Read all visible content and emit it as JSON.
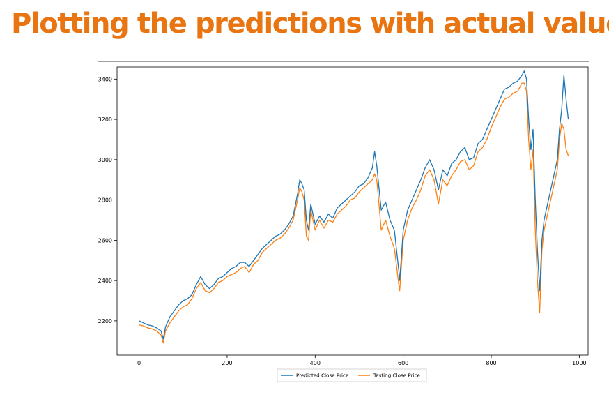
{
  "slide": {
    "title": "Plotting the predictions with actual values"
  },
  "colors": {
    "title": "#e87511",
    "predicted": "#1f77b4",
    "testing": "#ff7f0e"
  },
  "chart_data": {
    "type": "line",
    "title": "",
    "xlabel": "",
    "ylabel": "",
    "xlim": [
      -50,
      1020
    ],
    "ylim": [
      2030,
      3460
    ],
    "xticks": [
      0,
      200,
      400,
      600,
      800,
      1000
    ],
    "yticks": [
      2200,
      2400,
      2600,
      2800,
      3000,
      3200,
      3400
    ],
    "grid": false,
    "legend": {
      "placement": "bottom-center",
      "entries": [
        "Predicted Close Price",
        "Testing Close Price"
      ]
    },
    "x": [
      0,
      10,
      20,
      30,
      40,
      50,
      55,
      60,
      70,
      80,
      90,
      100,
      110,
      120,
      130,
      140,
      150,
      160,
      170,
      180,
      190,
      200,
      210,
      220,
      230,
      240,
      250,
      260,
      270,
      280,
      290,
      300,
      310,
      320,
      330,
      340,
      350,
      360,
      365,
      370,
      375,
      380,
      385,
      390,
      400,
      410,
      420,
      430,
      440,
      450,
      460,
      470,
      480,
      490,
      500,
      510,
      520,
      530,
      535,
      540,
      545,
      550,
      560,
      570,
      580,
      590,
      592,
      600,
      610,
      620,
      630,
      640,
      650,
      660,
      670,
      680,
      690,
      700,
      710,
      720,
      730,
      740,
      750,
      760,
      770,
      780,
      790,
      800,
      810,
      820,
      830,
      840,
      850,
      860,
      870,
      875,
      880,
      885,
      890,
      895,
      900,
      905,
      910,
      915,
      920,
      930,
      940,
      950,
      955,
      960,
      965,
      970,
      975
    ],
    "series": [
      {
        "name": "Predicted Close Price",
        "values": [
          2200,
          2190,
          2180,
          2175,
          2165,
          2150,
          2110,
          2170,
          2220,
          2250,
          2280,
          2300,
          2310,
          2330,
          2380,
          2420,
          2380,
          2360,
          2380,
          2410,
          2420,
          2440,
          2460,
          2470,
          2490,
          2490,
          2470,
          2500,
          2530,
          2560,
          2580,
          2600,
          2620,
          2630,
          2650,
          2680,
          2720,
          2830,
          2900,
          2880,
          2850,
          2700,
          2650,
          2780,
          2680,
          2720,
          2690,
          2730,
          2710,
          2760,
          2780,
          2800,
          2820,
          2840,
          2870,
          2880,
          2910,
          2960,
          3040,
          2970,
          2860,
          2750,
          2790,
          2700,
          2650,
          2450,
          2400,
          2650,
          2750,
          2800,
          2850,
          2900,
          2960,
          3000,
          2950,
          2850,
          2950,
          2920,
          2980,
          3000,
          3040,
          3060,
          3000,
          3010,
          3080,
          3100,
          3150,
          3200,
          3250,
          3300,
          3350,
          3360,
          3380,
          3390,
          3420,
          3440,
          3400,
          3200,
          3050,
          3150,
          2800,
          2550,
          2350,
          2600,
          2700,
          2800,
          2900,
          3000,
          3150,
          3250,
          3420,
          3300,
          3200
        ]
      },
      {
        "name": "Testing Close Price",
        "values": [
          2180,
          2175,
          2165,
          2160,
          2150,
          2130,
          2090,
          2150,
          2190,
          2220,
          2250,
          2270,
          2280,
          2310,
          2360,
          2390,
          2350,
          2340,
          2360,
          2390,
          2400,
          2420,
          2430,
          2440,
          2460,
          2470,
          2440,
          2480,
          2500,
          2540,
          2560,
          2580,
          2600,
          2610,
          2630,
          2660,
          2700,
          2800,
          2860,
          2840,
          2800,
          2620,
          2600,
          2750,
          2650,
          2700,
          2660,
          2700,
          2690,
          2730,
          2750,
          2770,
          2800,
          2810,
          2840,
          2860,
          2880,
          2900,
          2930,
          2900,
          2780,
          2650,
          2700,
          2620,
          2560,
          2380,
          2350,
          2600,
          2700,
          2760,
          2800,
          2850,
          2920,
          2950,
          2900,
          2780,
          2900,
          2870,
          2920,
          2950,
          2990,
          3000,
          2950,
          2970,
          3040,
          3060,
          3100,
          3160,
          3210,
          3260,
          3300,
          3310,
          3330,
          3340,
          3380,
          3380,
          3340,
          3100,
          2950,
          3050,
          2650,
          2400,
          2240,
          2550,
          2650,
          2750,
          2850,
          2950,
          3100,
          3180,
          3150,
          3050,
          3020
        ]
      }
    ]
  }
}
